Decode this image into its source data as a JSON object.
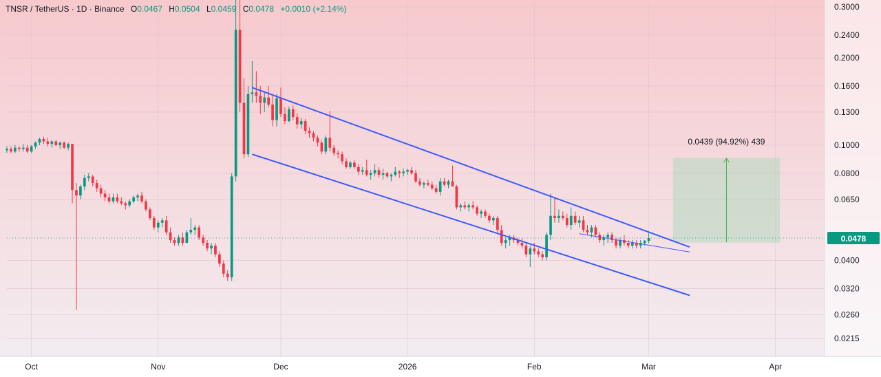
{
  "header": {
    "symbol": "TNSR / TetherUS · 1D · Binance",
    "open_label": "O",
    "open": "0.0467",
    "high_label": "H",
    "high": "0.0504",
    "low_label": "L",
    "low": "0.0459",
    "close_label": "C",
    "close": "0.0478",
    "change": "+0.0010 (+2.14%)"
  },
  "price_tag": "0.0478",
  "measure_label": "0.0439 (94.92%) 439",
  "chart_data": {
    "type": "candlestick",
    "y_scale": "log",
    "ylim": [
      0.0195,
      0.31
    ],
    "y_ticks": [
      {
        "v": 0.3,
        "label": "0.3000"
      },
      {
        "v": 0.24,
        "label": "0.2400"
      },
      {
        "v": 0.2,
        "label": "0.2000"
      },
      {
        "v": 0.16,
        "label": "0.1600"
      },
      {
        "v": 0.13,
        "label": "0.1300"
      },
      {
        "v": 0.1,
        "label": "0.1000"
      },
      {
        "v": 0.08,
        "label": "0.0800"
      },
      {
        "v": 0.065,
        "label": "0.0650"
      },
      {
        "v": 0.04,
        "label": "0.0400"
      },
      {
        "v": 0.032,
        "label": "0.0320"
      },
      {
        "v": 0.026,
        "label": "0.0260"
      },
      {
        "v": 0.0215,
        "label": "0.0215"
      }
    ],
    "x_ticks": [
      {
        "date": "2025-10-01",
        "label": "Oct"
      },
      {
        "date": "2025-11-01",
        "label": "Nov"
      },
      {
        "date": "2025-12-01",
        "label": "Dec"
      },
      {
        "date": "2026-01-01",
        "label": "2026"
      },
      {
        "date": "2026-02-01",
        "label": "Feb"
      },
      {
        "date": "2026-03-01",
        "label": "Mar"
      },
      {
        "date": "2026-04-01",
        "label": "Apr"
      }
    ],
    "xlim": [
      "2025-09-25",
      "2026-04-13"
    ],
    "first_date": "2025-09-25",
    "ohlc": [
      [
        0.096,
        0.099,
        0.094,
        0.097
      ],
      [
        0.097,
        0.099,
        0.094,
        0.095
      ],
      [
        0.095,
        0.1,
        0.094,
        0.098
      ],
      [
        0.098,
        0.099,
        0.095,
        0.097
      ],
      [
        0.097,
        0.101,
        0.095,
        0.098
      ],
      [
        0.098,
        0.1,
        0.094,
        0.095
      ],
      [
        0.095,
        0.1,
        0.094,
        0.099
      ],
      [
        0.099,
        0.103,
        0.097,
        0.102
      ],
      [
        0.102,
        0.106,
        0.1,
        0.105
      ],
      [
        0.105,
        0.107,
        0.101,
        0.103
      ],
      [
        0.103,
        0.106,
        0.099,
        0.101
      ],
      [
        0.101,
        0.104,
        0.098,
        0.103
      ],
      [
        0.103,
        0.104,
        0.099,
        0.1
      ],
      [
        0.1,
        0.103,
        0.097,
        0.102
      ],
      [
        0.102,
        0.103,
        0.097,
        0.098
      ],
      [
        0.098,
        0.102,
        0.096,
        0.101
      ],
      [
        0.101,
        0.101,
        0.063,
        0.07
      ],
      [
        0.07,
        0.074,
        0.027,
        0.067
      ],
      [
        0.067,
        0.073,
        0.065,
        0.072
      ],
      [
        0.072,
        0.079,
        0.07,
        0.077
      ],
      [
        0.077,
        0.08,
        0.075,
        0.078
      ],
      [
        0.078,
        0.079,
        0.072,
        0.074
      ],
      [
        0.074,
        0.076,
        0.069,
        0.071
      ],
      [
        0.071,
        0.073,
        0.066,
        0.068
      ],
      [
        0.068,
        0.07,
        0.064,
        0.066
      ],
      [
        0.066,
        0.068,
        0.063,
        0.064
      ],
      [
        0.064,
        0.068,
        0.063,
        0.066
      ],
      [
        0.066,
        0.068,
        0.063,
        0.064
      ],
      [
        0.064,
        0.066,
        0.062,
        0.063
      ],
      [
        0.063,
        0.064,
        0.06,
        0.062
      ],
      [
        0.062,
        0.065,
        0.061,
        0.064
      ],
      [
        0.064,
        0.067,
        0.063,
        0.066
      ],
      [
        0.066,
        0.068,
        0.064,
        0.067
      ],
      [
        0.067,
        0.069,
        0.063,
        0.064
      ],
      [
        0.064,
        0.065,
        0.059,
        0.06
      ],
      [
        0.06,
        0.061,
        0.055,
        0.056
      ],
      [
        0.056,
        0.057,
        0.051,
        0.052
      ],
      [
        0.052,
        0.055,
        0.05,
        0.054
      ],
      [
        0.054,
        0.056,
        0.052,
        0.055
      ],
      [
        0.055,
        0.057,
        0.049,
        0.05
      ],
      [
        0.05,
        0.052,
        0.046,
        0.047
      ],
      [
        0.047,
        0.048,
        0.045,
        0.046
      ],
      [
        0.046,
        0.049,
        0.045,
        0.048
      ],
      [
        0.048,
        0.05,
        0.045,
        0.046
      ],
      [
        0.046,
        0.051,
        0.046,
        0.05
      ],
      [
        0.05,
        0.056,
        0.049,
        0.051
      ],
      [
        0.051,
        0.053,
        0.049,
        0.052
      ],
      [
        0.052,
        0.053,
        0.047,
        0.048
      ],
      [
        0.048,
        0.049,
        0.045,
        0.046
      ],
      [
        0.046,
        0.047,
        0.043,
        0.044
      ],
      [
        0.044,
        0.046,
        0.042,
        0.045
      ],
      [
        0.045,
        0.046,
        0.041,
        0.042
      ],
      [
        0.042,
        0.043,
        0.038,
        0.039
      ],
      [
        0.039,
        0.04,
        0.035,
        0.036
      ],
      [
        0.036,
        0.037,
        0.034,
        0.035
      ],
      [
        0.035,
        0.08,
        0.034,
        0.078
      ],
      [
        0.078,
        0.36,
        0.075,
        0.25
      ],
      [
        0.25,
        0.33,
        0.13,
        0.14
      ],
      [
        0.14,
        0.17,
        0.09,
        0.093
      ],
      [
        0.093,
        0.16,
        0.091,
        0.15
      ],
      [
        0.15,
        0.195,
        0.14,
        0.152
      ],
      [
        0.152,
        0.18,
        0.14,
        0.148
      ],
      [
        0.148,
        0.16,
        0.128,
        0.14
      ],
      [
        0.14,
        0.152,
        0.13,
        0.146
      ],
      [
        0.146,
        0.16,
        0.135,
        0.138
      ],
      [
        0.138,
        0.15,
        0.116,
        0.122
      ],
      [
        0.122,
        0.15,
        0.116,
        0.145
      ],
      [
        0.145,
        0.158,
        0.125,
        0.128
      ],
      [
        0.128,
        0.135,
        0.118,
        0.121
      ],
      [
        0.121,
        0.136,
        0.12,
        0.133
      ],
      [
        0.133,
        0.137,
        0.122,
        0.125
      ],
      [
        0.125,
        0.129,
        0.114,
        0.118
      ],
      [
        0.118,
        0.124,
        0.114,
        0.121
      ],
      [
        0.121,
        0.123,
        0.109,
        0.112
      ],
      [
        0.112,
        0.115,
        0.106,
        0.11
      ],
      [
        0.11,
        0.112,
        0.103,
        0.106
      ],
      [
        0.106,
        0.108,
        0.099,
        0.102
      ],
      [
        0.102,
        0.104,
        0.093,
        0.095
      ],
      [
        0.095,
        0.108,
        0.093,
        0.106
      ],
      [
        0.106,
        0.131,
        0.095,
        0.098
      ],
      [
        0.098,
        0.1,
        0.092,
        0.094
      ],
      [
        0.094,
        0.096,
        0.09,
        0.093
      ],
      [
        0.093,
        0.095,
        0.086,
        0.088
      ],
      [
        0.088,
        0.09,
        0.083,
        0.084
      ],
      [
        0.084,
        0.088,
        0.083,
        0.087
      ],
      [
        0.087,
        0.089,
        0.083,
        0.084
      ],
      [
        0.084,
        0.086,
        0.079,
        0.081
      ],
      [
        0.081,
        0.084,
        0.079,
        0.082
      ],
      [
        0.082,
        0.089,
        0.078,
        0.079
      ],
      [
        0.079,
        0.082,
        0.076,
        0.08
      ],
      [
        0.08,
        0.086,
        0.078,
        0.082
      ],
      [
        0.082,
        0.084,
        0.077,
        0.079
      ],
      [
        0.079,
        0.083,
        0.076,
        0.08
      ],
      [
        0.08,
        0.081,
        0.077,
        0.078
      ],
      [
        0.078,
        0.08,
        0.075,
        0.079
      ],
      [
        0.079,
        0.084,
        0.078,
        0.081
      ],
      [
        0.081,
        0.082,
        0.077,
        0.08
      ],
      [
        0.08,
        0.083,
        0.078,
        0.081
      ],
      [
        0.081,
        0.083,
        0.079,
        0.082
      ],
      [
        0.082,
        0.084,
        0.079,
        0.08
      ],
      [
        0.08,
        0.082,
        0.074,
        0.075
      ],
      [
        0.075,
        0.077,
        0.072,
        0.073
      ],
      [
        0.073,
        0.075,
        0.071,
        0.074
      ],
      [
        0.074,
        0.076,
        0.072,
        0.073
      ],
      [
        0.073,
        0.075,
        0.07,
        0.071
      ],
      [
        0.071,
        0.073,
        0.068,
        0.069
      ],
      [
        0.069,
        0.077,
        0.067,
        0.075
      ],
      [
        0.075,
        0.077,
        0.072,
        0.073
      ],
      [
        0.073,
        0.076,
        0.071,
        0.075
      ],
      [
        0.075,
        0.085,
        0.073,
        0.072
      ],
      [
        0.072,
        0.073,
        0.06,
        0.061
      ],
      [
        0.061,
        0.063,
        0.059,
        0.062
      ],
      [
        0.062,
        0.064,
        0.06,
        0.061
      ],
      [
        0.061,
        0.063,
        0.059,
        0.062
      ],
      [
        0.062,
        0.064,
        0.06,
        0.061
      ],
      [
        0.061,
        0.062,
        0.057,
        0.058
      ],
      [
        0.058,
        0.06,
        0.056,
        0.059
      ],
      [
        0.059,
        0.06,
        0.056,
        0.057
      ],
      [
        0.057,
        0.058,
        0.054,
        0.055
      ],
      [
        0.055,
        0.057,
        0.053,
        0.056
      ],
      [
        0.056,
        0.057,
        0.05,
        0.051
      ],
      [
        0.051,
        0.053,
        0.045,
        0.046
      ],
      [
        0.046,
        0.048,
        0.044,
        0.047
      ],
      [
        0.047,
        0.049,
        0.045,
        0.048
      ],
      [
        0.048,
        0.049,
        0.046,
        0.047
      ],
      [
        0.047,
        0.048,
        0.045,
        0.046
      ],
      [
        0.046,
        0.048,
        0.044,
        0.045
      ],
      [
        0.045,
        0.046,
        0.041,
        0.042
      ],
      [
        0.042,
        0.045,
        0.038,
        0.044
      ],
      [
        0.044,
        0.046,
        0.042,
        0.043
      ],
      [
        0.043,
        0.044,
        0.041,
        0.042
      ],
      [
        0.042,
        0.043,
        0.04,
        0.041
      ],
      [
        0.041,
        0.05,
        0.04,
        0.049
      ],
      [
        0.049,
        0.068,
        0.047,
        0.057
      ],
      [
        0.057,
        0.066,
        0.054,
        0.056
      ],
      [
        0.056,
        0.06,
        0.054,
        0.057
      ],
      [
        0.057,
        0.059,
        0.055,
        0.056
      ],
      [
        0.056,
        0.058,
        0.052,
        0.053
      ],
      [
        0.053,
        0.061,
        0.051,
        0.057
      ],
      [
        0.057,
        0.059,
        0.053,
        0.054
      ],
      [
        0.054,
        0.057,
        0.052,
        0.055
      ],
      [
        0.055,
        0.057,
        0.05,
        0.051
      ],
      [
        0.051,
        0.053,
        0.049,
        0.05
      ],
      [
        0.05,
        0.053,
        0.048,
        0.052
      ],
      [
        0.052,
        0.053,
        0.048,
        0.049
      ],
      [
        0.049,
        0.05,
        0.046,
        0.047
      ],
      [
        0.047,
        0.049,
        0.045,
        0.048
      ],
      [
        0.048,
        0.05,
        0.046,
        0.049
      ],
      [
        0.049,
        0.05,
        0.046,
        0.047
      ],
      [
        0.047,
        0.048,
        0.044,
        0.045
      ],
      [
        0.045,
        0.048,
        0.044,
        0.047
      ],
      [
        0.047,
        0.049,
        0.045,
        0.046
      ],
      [
        0.046,
        0.047,
        0.044,
        0.045
      ],
      [
        0.045,
        0.047,
        0.044,
        0.046
      ],
      [
        0.046,
        0.047,
        0.044,
        0.045
      ],
      [
        0.045,
        0.047,
        0.044,
        0.046
      ],
      [
        0.046,
        0.047,
        0.045,
        0.0468
      ],
      [
        0.0467,
        0.0504,
        0.0459,
        0.0478
      ]
    ],
    "trendlines": [
      {
        "name": "channel-upper",
        "start": [
          "2025-11-24",
          0.158
        ],
        "end": [
          "2026-03-11",
          0.0445
        ]
      },
      {
        "name": "channel-lower",
        "start": [
          "2025-11-24",
          0.093
        ],
        "end": [
          "2026-03-11",
          0.0303
        ]
      },
      {
        "name": "wedge-lower",
        "start": [
          "2026-02-12",
          0.0495
        ],
        "end": [
          "2026-03-11",
          0.0428
        ]
      }
    ],
    "target_box": {
      "start": "2026-03-07",
      "end": "2026-04-02",
      "bottom": 0.0462,
      "top": 0.0901
    },
    "last_price": 0.0478,
    "colors": {
      "up": "#089981",
      "down": "#f23645",
      "line": "#3d5afe",
      "last": "#089981",
      "box": "#a6d9b9",
      "bg_top": "#f7c9cd",
      "bg_bottom": "#f2eef2"
    }
  }
}
